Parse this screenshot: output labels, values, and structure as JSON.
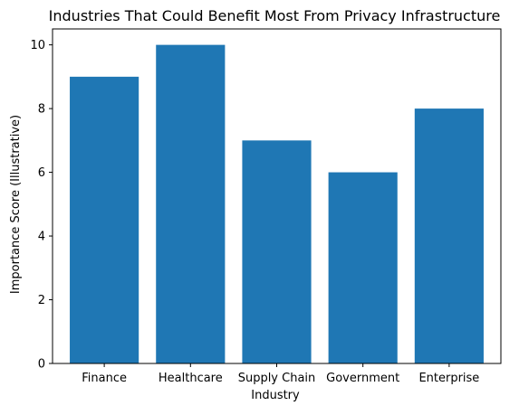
{
  "chart_data": {
    "type": "bar",
    "title": "Industries That Could Benefit Most From Privacy Infrastructure",
    "xlabel": "Industry",
    "ylabel": "Importance Score (Illustrative)",
    "categories": [
      "Finance",
      "Healthcare",
      "Supply Chain",
      "Government",
      "Enterprise"
    ],
    "values": [
      9,
      10,
      7,
      6,
      8
    ],
    "ylim": [
      0,
      10.5
    ],
    "yticks": [
      0,
      2,
      4,
      6,
      8,
      10
    ],
    "grid": false,
    "colors": {
      "bar": "#1f77b4",
      "axis": "#000000"
    }
  }
}
